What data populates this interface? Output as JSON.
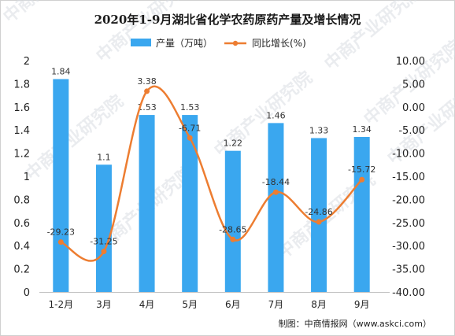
{
  "chart_data": {
    "type": "bar+line",
    "title": "2020年1-9月湖北省化学农药原药产量及增长情况",
    "categories": [
      "1-2月",
      "3月",
      "4月",
      "5月",
      "6月",
      "7月",
      "8月",
      "9月"
    ],
    "series": [
      {
        "name": "产量（万吨）",
        "type": "bar",
        "axis": "left",
        "color": "#3aa7ef",
        "values": [
          1.84,
          1.1,
          1.53,
          1.53,
          1.22,
          1.46,
          1.33,
          1.34
        ],
        "labels": [
          "1.84",
          "1.1",
          "1.53",
          "1.53",
          "1.22",
          "1.46",
          "1.33",
          "1.34"
        ]
      },
      {
        "name": "同比增长(%)",
        "type": "line",
        "axis": "right",
        "color": "#ed7d31",
        "values": [
          -29.23,
          -31.25,
          3.38,
          -6.71,
          -28.65,
          -18.44,
          -24.86,
          -15.72
        ],
        "labels": [
          "-29.23",
          "-31.25",
          "3.38",
          "-6.71",
          "-28.65",
          "-18.44",
          "-24.86",
          "-15.72"
        ]
      }
    ],
    "y_left": {
      "lim": [
        0,
        2
      ],
      "ticks": [
        0,
        0.2,
        0.4,
        0.6,
        0.8,
        1,
        1.2,
        1.4,
        1.6,
        1.8,
        2
      ],
      "tick_labels": [
        "0",
        "0.2",
        "0.4",
        "0.6",
        "0.8",
        "1",
        "1.2",
        "1.4",
        "1.6",
        "1.8",
        "2"
      ]
    },
    "y_right": {
      "lim": [
        -40,
        10
      ],
      "ticks": [
        -40,
        -35,
        -30,
        -25,
        -20,
        -15,
        -10,
        -5,
        0,
        5,
        10
      ],
      "tick_labels": [
        "-40.00",
        "-35.00",
        "-30.00",
        "-25.00",
        "-20.00",
        "-15.00",
        "-10.00",
        "-5.00",
        "0.00",
        "5.00",
        "10.00"
      ]
    },
    "grid": false,
    "legend_position": "top-center",
    "source": "制图：中商情报网（www.askci.com）",
    "watermark": "中商产业研究院"
  }
}
